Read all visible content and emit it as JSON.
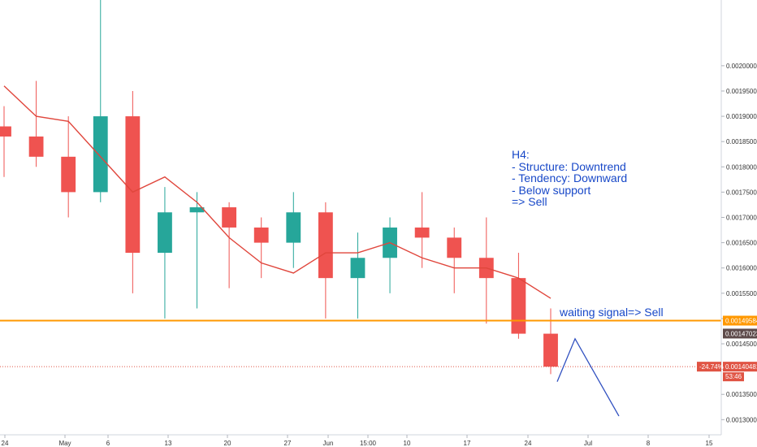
{
  "chart_data": {
    "type": "candlestick",
    "title": "",
    "ylim": [
      0.00127,
      0.00213
    ],
    "y_ticks": [
      "0.00130000",
      "0.00135000",
      "0.00140000",
      "0.00145000",
      "0.00150000",
      "0.00155000",
      "0.00160000",
      "0.00165000",
      "0.00170000",
      "0.00175000",
      "0.00180000",
      "0.00185000",
      "0.00190000",
      "0.00195000",
      "0.00200000"
    ],
    "x_ticks": [
      "24",
      "May",
      "6",
      "13",
      "20",
      "27",
      "Jun",
      "15:00",
      "10",
      "17",
      "24",
      "Jul",
      "8",
      "15"
    ],
    "candles": {
      "open": [
        0.00188,
        0.00186,
        0.00182,
        0.00175,
        0.0019,
        0.00163,
        0.00171,
        0.00172,
        0.00168,
        0.00165,
        0.00171,
        0.00158,
        0.00162,
        0.00168,
        0.00166,
        0.00162,
        0.00158,
        0.00147
      ],
      "close": [
        0.00186,
        0.00182,
        0.00175,
        0.0019,
        0.00163,
        0.00171,
        0.00172,
        0.00168,
        0.00165,
        0.00171,
        0.00158,
        0.00162,
        0.00168,
        0.00166,
        0.00162,
        0.00158,
        0.00147,
        0.0014048
      ],
      "high": [
        0.00192,
        0.00197,
        0.0019,
        0.00214,
        0.00195,
        0.00176,
        0.00175,
        0.00173,
        0.0017,
        0.00175,
        0.00173,
        0.00167,
        0.0017,
        0.00175,
        0.00168,
        0.0017,
        0.00163,
        0.00152
      ],
      "low": [
        0.00178,
        0.0018,
        0.0017,
        0.00173,
        0.00155,
        0.0015,
        0.00152,
        0.00156,
        0.00158,
        0.0016,
        0.0015,
        0.0015,
        0.00155,
        0.0016,
        0.00155,
        0.00149,
        0.00146,
        0.00139
      ]
    },
    "moving_average": [
      0.00196,
      0.0019,
      0.00189,
      0.00182,
      0.00175,
      0.00178,
      0.00173,
      0.00166,
      0.00161,
      0.00159,
      0.00163,
      0.00163,
      0.00165,
      0.00162,
      0.0016,
      0.0016,
      0.00158,
      0.00154
    ],
    "support_level": 0.00149584,
    "price_labels": {
      "support": "0.00149584",
      "mark": "0.00147023",
      "current": "0.00140481",
      "change": "-24.74%",
      "countdown": "53:46"
    },
    "projection": [
      0.0014048,
      0.001375,
      0.00146,
      0.001307
    ],
    "annotations": {
      "h4_lines": [
        "H4:",
        "- Structure: Downtrend",
        "- Tendency: Downward",
        "- Below support",
        "=> Sell"
      ],
      "waiting": "waiting signal=> Sell"
    },
    "colors": {
      "up": "#26a69a",
      "down": "#ef5350",
      "ma": "#e0463c",
      "support": "#ff9800",
      "projection": "#3050c0",
      "annotation": "#1848c8",
      "mark_label_bg": "#5d4a4a",
      "current_label_bg": "#e05444"
    },
    "grid": false
  }
}
